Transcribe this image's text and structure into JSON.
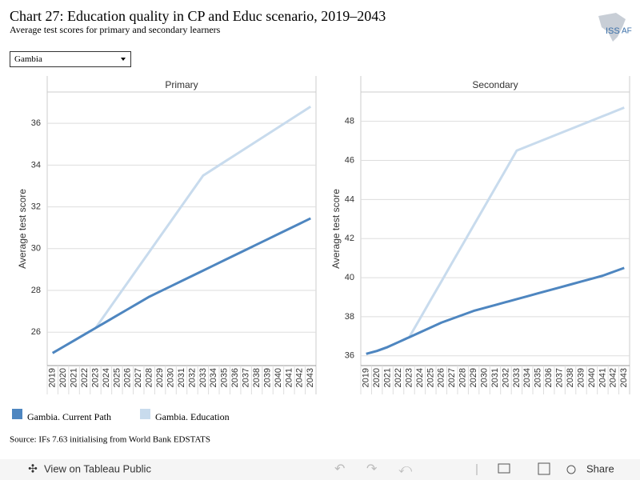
{
  "title": "Chart 27: Education quality in CP and Educ scenario, 2019–2043",
  "subtitle": "Average test scores for primary and secondary learners",
  "logo": {
    "left": "ISS",
    "right": "AF"
  },
  "dropdown": "Gambia",
  "source": "Source: IFs 7.63 initialising from World Bank EDSTATS",
  "toolbar": {
    "view": "View on Tableau Public",
    "share": "Share"
  },
  "chart_data": [
    {
      "type": "line",
      "title": "Primary",
      "y_label": "Average test score",
      "categories": [
        "2019",
        "2020",
        "2021",
        "2022",
        "2023",
        "2024",
        "2025",
        "2026",
        "2027",
        "2028",
        "2029",
        "2030",
        "2031",
        "2032",
        "2033",
        "2034",
        "2035",
        "2036",
        "2037",
        "2038",
        "2039",
        "2040",
        "2041",
        "2042",
        "2043"
      ],
      "ylim": [
        24.4,
        37.5
      ],
      "yticks": [
        26,
        28,
        30,
        32,
        34,
        36
      ],
      "grid": true,
      "series": [
        {
          "name": "Gambia. Current Path",
          "color": "#4e86c0",
          "values": [
            25.0,
            25.3,
            25.6,
            25.9,
            26.2,
            26.5,
            26.8,
            27.1,
            27.4,
            27.7,
            27.95,
            28.2,
            28.45,
            28.7,
            28.95,
            29.2,
            29.45,
            29.7,
            29.95,
            30.2,
            30.45,
            30.7,
            30.95,
            31.2,
            31.45
          ]
        },
        {
          "name": "Gambia. Education",
          "color": "#c8dbed",
          "values": [
            25.0,
            25.3,
            25.6,
            25.9,
            26.2,
            26.93,
            27.66,
            28.39,
            29.12,
            29.85,
            30.58,
            31.31,
            32.04,
            32.77,
            33.5,
            33.83,
            34.16,
            34.49,
            34.82,
            35.15,
            35.48,
            35.81,
            36.14,
            36.47,
            36.8
          ]
        }
      ]
    },
    {
      "type": "line",
      "title": "Secondary",
      "y_label": "Average test score",
      "categories": [
        "2019",
        "2020",
        "2021",
        "2022",
        "2023",
        "2024",
        "2025",
        "2026",
        "2027",
        "2028",
        "2029",
        "2030",
        "2031",
        "2032",
        "2033",
        "2034",
        "2035",
        "2036",
        "2037",
        "2038",
        "2039",
        "2040",
        "2041",
        "2042",
        "2043"
      ],
      "ylim": [
        35.5,
        49.5
      ],
      "yticks": [
        36,
        38,
        40,
        42,
        44,
        46,
        48
      ],
      "grid": true,
      "series": [
        {
          "name": "Gambia. Current Path",
          "color": "#4e86c0",
          "values": [
            36.1,
            36.25,
            36.45,
            36.7,
            36.95,
            37.2,
            37.45,
            37.7,
            37.9,
            38.1,
            38.3,
            38.45,
            38.6,
            38.75,
            38.9,
            39.05,
            39.2,
            39.35,
            39.5,
            39.65,
            39.8,
            39.95,
            40.1,
            40.3,
            40.5
          ]
        },
        {
          "name": "Gambia. Education",
          "color": "#c8dbed",
          "values": [
            36.1,
            36.25,
            36.45,
            36.7,
            36.95,
            37.9,
            38.86,
            39.81,
            40.77,
            41.72,
            42.68,
            43.63,
            44.59,
            45.54,
            46.5,
            46.72,
            46.94,
            47.16,
            47.38,
            47.6,
            47.82,
            48.04,
            48.26,
            48.48,
            48.7
          ]
        }
      ]
    }
  ]
}
